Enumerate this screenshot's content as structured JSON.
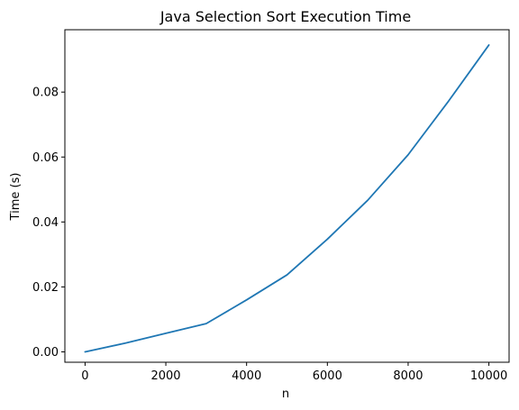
{
  "chart_data": {
    "type": "line",
    "title": "Java Selection Sort Execution Time",
    "xlabel": "n",
    "ylabel": "Time (s)",
    "x": [
      0,
      1000,
      2000,
      3000,
      4000,
      5000,
      6000,
      7000,
      8000,
      9000,
      10000
    ],
    "series": [
      {
        "values": [
          0.0,
          0.0027,
          0.0057,
          0.0087,
          0.016,
          0.0237,
          0.0347,
          0.0467,
          0.0607,
          0.0772,
          0.0945
        ],
        "color": "#1f77b4"
      }
    ],
    "xlim": [
      -500,
      10500
    ],
    "ylim": [
      -0.0032,
      0.0992
    ],
    "xticks": [
      0,
      2000,
      4000,
      6000,
      8000,
      10000
    ],
    "xtick_labels": [
      "0",
      "2000",
      "4000",
      "6000",
      "8000",
      "10000"
    ],
    "yticks": [
      0.0,
      0.02,
      0.04,
      0.06,
      0.08
    ],
    "ytick_labels": [
      "0.00",
      "0.02",
      "0.04",
      "0.06",
      "0.08"
    ],
    "grid": false,
    "legend": false
  }
}
